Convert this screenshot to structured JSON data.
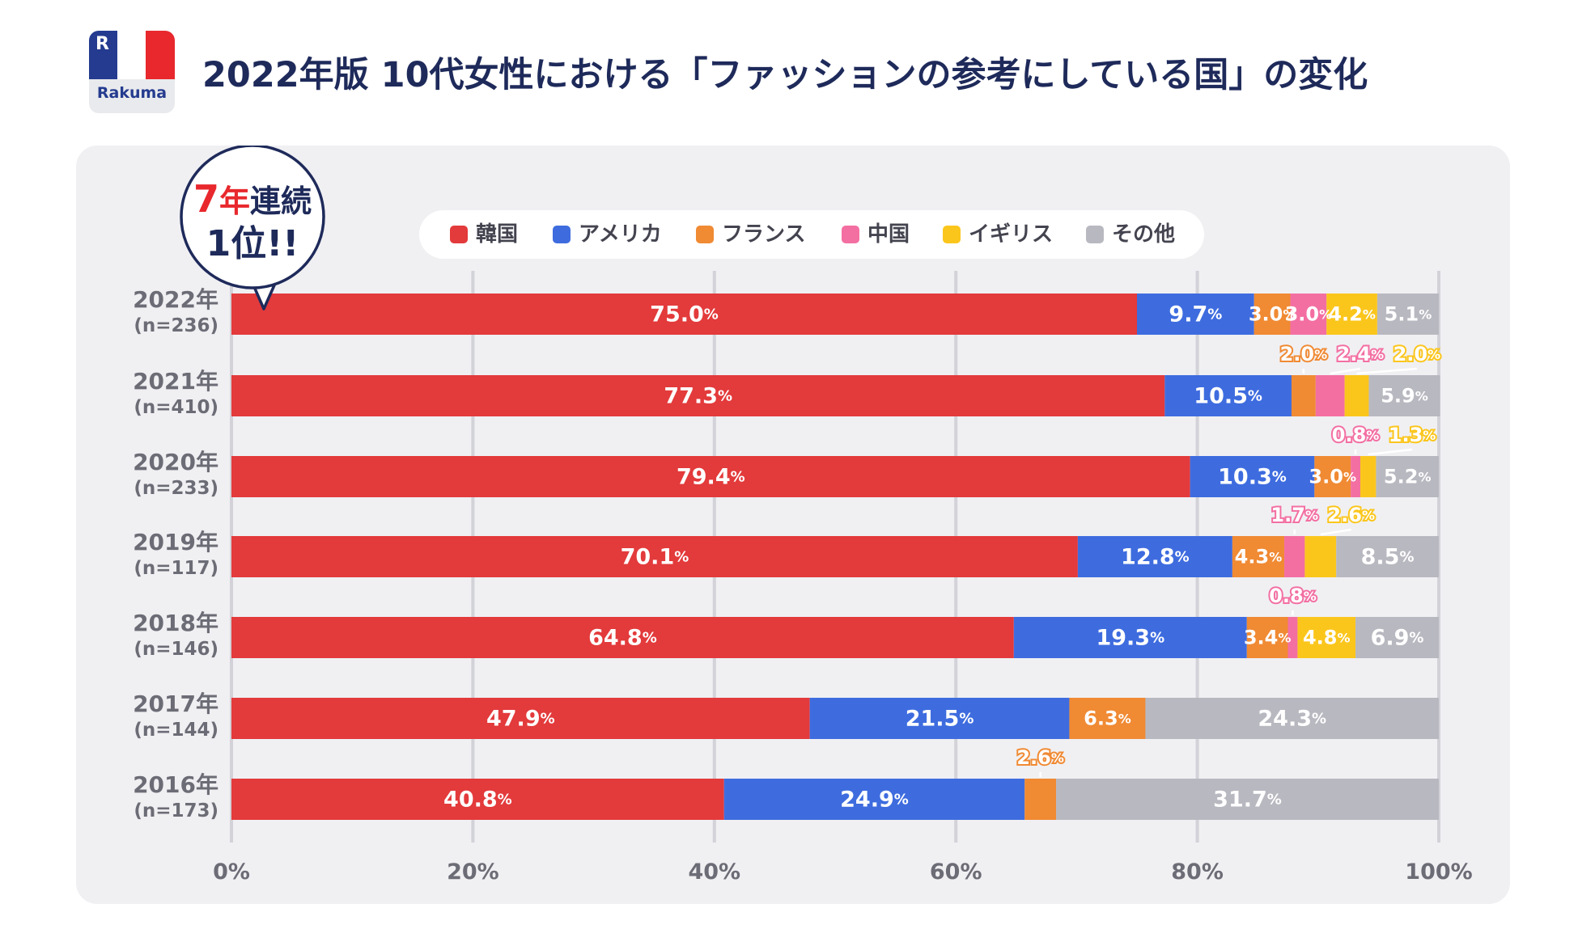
{
  "logo": {
    "brand": "Rakuma",
    "mark": "R"
  },
  "title": "2022年版 10代女性における「ファッションの参考にしている国」の変化",
  "badge": {
    "line1_num": "7",
    "line1_unit": "年",
    "line1_rest": "連続",
    "line2": "1位!!"
  },
  "colors": {
    "korea": "#e33a3b",
    "america": "#3e6cdf",
    "france": "#f08a33",
    "china": "#f36fa2",
    "uk": "#fbc61c",
    "other": "#b8b8c0",
    "title": "#1e2a5a",
    "panel": "#f0f0f3"
  },
  "chart_data": {
    "type": "bar",
    "orientation": "horizontal",
    "stacked": true,
    "title": "2022年版 10代女性における「ファッションの参考にしている国」の変化",
    "xlim": [
      0,
      100
    ],
    "ticks": [
      "0%",
      "20%",
      "40%",
      "60%",
      "80%",
      "100%"
    ],
    "legend": [
      "韓国",
      "アメリカ",
      "フランス",
      "中国",
      "イギリス",
      "その他"
    ],
    "legend_position": "top",
    "rows": [
      {
        "year": "2022年",
        "n": "(n=236)",
        "values": [
          75.0,
          9.7,
          3.0,
          3.0,
          4.2,
          5.1
        ],
        "labels": [
          "75.0",
          "9.7",
          "3.0",
          "3.0",
          "4.2",
          "5.1"
        ]
      },
      {
        "year": "2021年",
        "n": "(n=410)",
        "values": [
          77.3,
          10.5,
          2.0,
          2.4,
          2.0,
          5.9
        ],
        "labels": [
          "77.3",
          "10.5",
          "2.0",
          "2.4",
          "2.0",
          "5.9"
        ]
      },
      {
        "year": "2020年",
        "n": "(n=233)",
        "values": [
          79.4,
          10.3,
          3.0,
          0.8,
          1.3,
          5.2
        ],
        "labels": [
          "79.4",
          "10.3",
          "3.0",
          "0.8",
          "1.3",
          "5.2"
        ]
      },
      {
        "year": "2019年",
        "n": "(n=117)",
        "values": [
          70.1,
          12.8,
          4.3,
          1.7,
          2.6,
          8.5
        ],
        "labels": [
          "70.1",
          "12.8",
          "4.3",
          "1.7",
          "2.6",
          "8.5"
        ]
      },
      {
        "year": "2018年",
        "n": "(n=146)",
        "values": [
          64.8,
          19.3,
          3.4,
          0.8,
          4.8,
          6.9
        ],
        "labels": [
          "64.8",
          "19.3",
          "3.4",
          "0.8",
          "4.8",
          "6.9"
        ]
      },
      {
        "year": "2017年",
        "n": "(n=144)",
        "values": [
          47.9,
          21.5,
          6.3,
          0,
          0,
          24.3
        ],
        "labels": [
          "47.9",
          "21.5",
          "6.3",
          "",
          "",
          "24.3"
        ]
      },
      {
        "year": "2016年",
        "n": "(n=173)",
        "values": [
          40.8,
          24.9,
          2.6,
          0,
          0,
          31.7
        ],
        "labels": [
          "40.8",
          "24.9",
          "2.6",
          "",
          "",
          "31.7"
        ]
      }
    ]
  }
}
